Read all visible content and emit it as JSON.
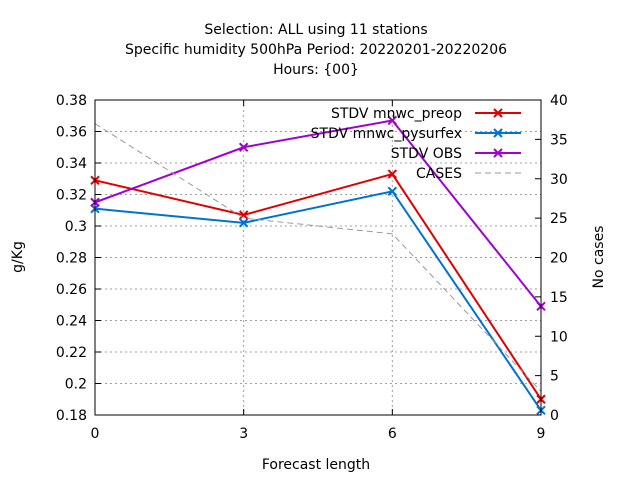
{
  "chart_data": {
    "type": "line",
    "title_lines": [
      "Selection: ALL using    11 stations",
      "Specific humidity 500hPa   Period: 20220201-20220206",
      "Hours: {00}"
    ],
    "xlabel": "Forecast length",
    "ylabel": "g/Kg",
    "y2label": "No cases",
    "x": [
      0,
      3,
      6,
      9
    ],
    "xlim": [
      0,
      9
    ],
    "ylim": [
      0.18,
      0.38
    ],
    "y2lim": [
      0,
      40
    ],
    "x_ticks": [
      "0",
      "3",
      "6",
      "9"
    ],
    "y_ticks": [
      "0.18",
      "0.2",
      "0.22",
      "0.24",
      "0.26",
      "0.28",
      "0.3",
      "0.32",
      "0.34",
      "0.36",
      "0.38"
    ],
    "y2_ticks": [
      "0",
      "5",
      "10",
      "15",
      "20",
      "25",
      "30",
      "35",
      "40"
    ],
    "grid": true,
    "legend_position": "top-right",
    "series": [
      {
        "name": "STDV mnwc_preop",
        "color": "#e00000",
        "axis": "y",
        "style": "solid",
        "marker": "x",
        "values": [
          0.329,
          0.307,
          0.333,
          0.19
        ]
      },
      {
        "name": "STDV mnwc_pysurfex",
        "color": "#0072d0",
        "axis": "y",
        "style": "solid",
        "marker": "x",
        "values": [
          0.311,
          0.302,
          0.322,
          0.183
        ]
      },
      {
        "name": "STDV OBS",
        "color": "#a000d0",
        "axis": "y",
        "style": "solid",
        "marker": "x",
        "values": [
          0.315,
          0.35,
          0.367,
          0.249
        ]
      },
      {
        "name": "CASES",
        "color": "#999999",
        "axis": "y2",
        "style": "dashed",
        "marker": "none",
        "values": [
          37,
          25,
          23,
          3
        ]
      }
    ]
  }
}
